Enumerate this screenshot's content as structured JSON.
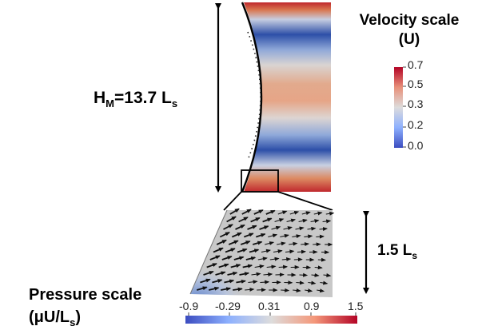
{
  "velocity_scale": {
    "title_line1": "Velocity scale",
    "title_line2": "(U)",
    "ticks": [
      "0.7",
      "0.5",
      "0.3",
      "0.2",
      "0.0"
    ],
    "colors": {
      "low": "#3b4cc0",
      "mid": "#dddcdc",
      "high": "#b40426"
    }
  },
  "height_label": {
    "main": "H",
    "sub_m": "M",
    "eq": "=13.7 L",
    "sub_s": "s"
  },
  "zoom_height_label": {
    "main": "1.5 L",
    "sub_s": "s"
  },
  "pressure_scale": {
    "title_line1": "Pressure scale",
    "title_line2": "(μU/L",
    "title_sub": "s",
    "title_close": ")",
    "ticks": [
      "-0.9",
      "-0.29",
      "0.31",
      "0.9",
      "1.5"
    ],
    "colors": {
      "low": "#3b4cc0",
      "mid": "#dddcdc",
      "high": "#b40426"
    }
  }
}
